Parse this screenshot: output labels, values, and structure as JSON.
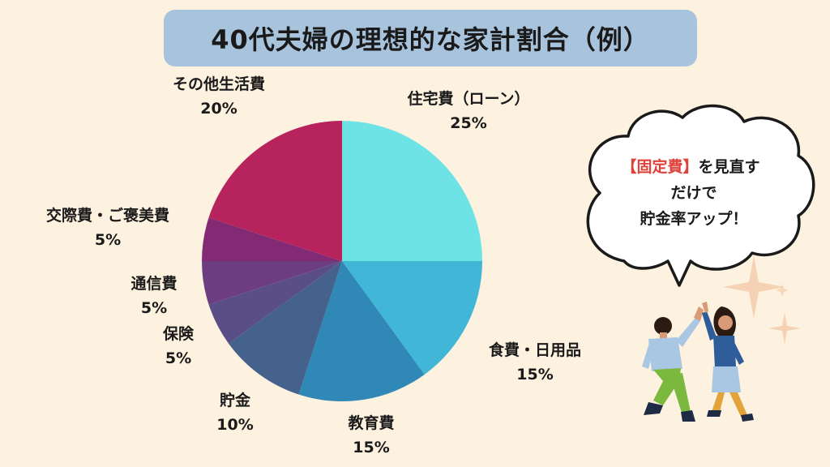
{
  "title": "40代夫婦の理想的な家計割合（例）",
  "chart_data": {
    "type": "pie",
    "start_angle_deg": 0,
    "direction": "clockwise",
    "slices": [
      {
        "label": "住宅費（ローン）",
        "value": 25,
        "display": "25%",
        "color": "#6ee3e6"
      },
      {
        "label": "食費・日用品",
        "value": 15,
        "display": "15%",
        "color": "#42b6d6"
      },
      {
        "label": "教育費",
        "value": 15,
        "display": "15%",
        "color": "#2f88b6"
      },
      {
        "label": "貯金",
        "value": 10,
        "display": "10%",
        "color": "#44628c"
      },
      {
        "label": "保険",
        "value": 5,
        "display": "5%",
        "color": "#5a4e87"
      },
      {
        "label": "通信費",
        "value": 5,
        "display": "5%",
        "color": "#6d3d82"
      },
      {
        "label": "交際費・ご褒美費",
        "value": 5,
        "display": "5%",
        "color": "#832a75"
      },
      {
        "label": "その他生活費",
        "value": 20,
        "display": "20%",
        "color": "#b7235d"
      }
    ]
  },
  "bubble": {
    "highlight": "【固定費】",
    "line1_rest": "を見直す",
    "line2": "だけで",
    "line3": "貯金率アップ！"
  }
}
